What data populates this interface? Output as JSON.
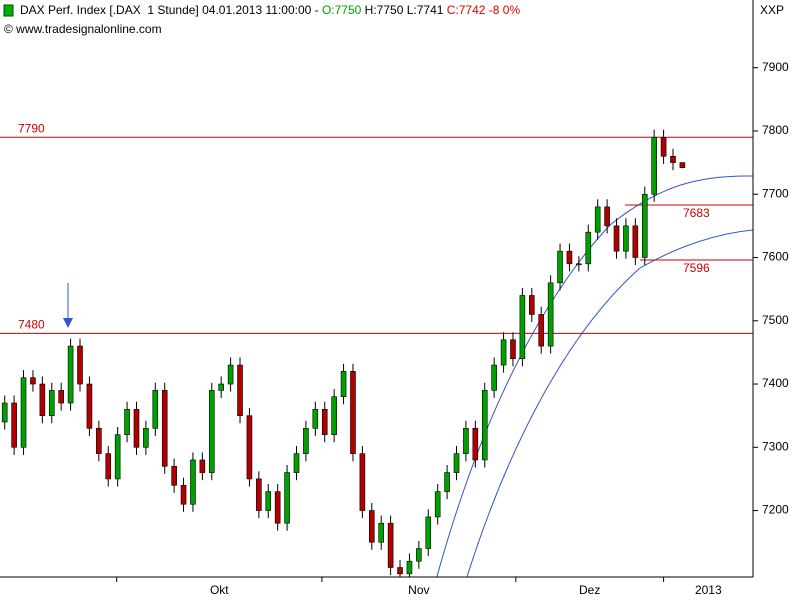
{
  "chart_data": {
    "type": "candlestick",
    "title": "DAX Perf. Index [.DAX  1 Stunde] 04.01.2013 11:00:00 - ",
    "open_label": "O:7750",
    "high_low_label": " H:7750 L:7741 ",
    "change_label": "C:7742 -8 0%",
    "source": "© www.tradesignalonline.com",
    "axis_code": "XXP",
    "up_color": "#00a000",
    "down_color": "#b00000",
    "level_color": "#cc0000",
    "open": [
      7340,
      7370,
      7300,
      7410,
      7400,
      7350,
      7390,
      7370,
      7460,
      7400,
      7330,
      7290,
      7250,
      7320,
      7360,
      7300,
      7330,
      7390,
      7270,
      7240,
      7210,
      7280,
      7260,
      7390,
      7400,
      7430,
      7350,
      7250,
      7200,
      7230,
      7180,
      7260,
      7290,
      7330,
      7360,
      7320,
      7380,
      7420,
      7290,
      7200,
      7150,
      7180,
      7110,
      7100,
      7120,
      7140,
      7190,
      7230,
      7260,
      7290,
      7330,
      7280,
      7390,
      7430,
      7470,
      7440,
      7540,
      7510,
      7460,
      7560,
      7610,
      7590,
      7590,
      7640,
      7680,
      7650,
      7610,
      7650,
      7600,
      7700,
      7790,
      7760,
      7750
    ],
    "high": [
      7382,
      7382,
      7422,
      7422,
      7412,
      7402,
      7402,
      7472,
      7472,
      7412,
      7342,
      7302,
      7332,
      7372,
      7372,
      7342,
      7402,
      7402,
      7282,
      7252,
      7292,
      7292,
      7402,
      7412,
      7442,
      7442,
      7362,
      7262,
      7242,
      7242,
      7272,
      7302,
      7342,
      7372,
      7372,
      7392,
      7432,
      7432,
      7302,
      7212,
      7192,
      7192,
      7122,
      7132,
      7152,
      7202,
      7242,
      7272,
      7302,
      7342,
      7342,
      7402,
      7442,
      7482,
      7482,
      7552,
      7552,
      7522,
      7572,
      7622,
      7622,
      7602,
      7652,
      7692,
      7692,
      7662,
      7662,
      7662,
      7712,
      7802,
      7802,
      7772,
      7750
    ],
    "low": [
      7328,
      7288,
      7288,
      7388,
      7338,
      7338,
      7358,
      7358,
      7388,
      7318,
      7278,
      7238,
      7238,
      7308,
      7288,
      7288,
      7318,
      7258,
      7228,
      7198,
      7198,
      7248,
      7248,
      7378,
      7388,
      7338,
      7238,
      7188,
      7188,
      7168,
      7168,
      7248,
      7278,
      7318,
      7308,
      7308,
      7368,
      7278,
      7188,
      7138,
      7138,
      7098,
      7088,
      7088,
      7108,
      7128,
      7178,
      7218,
      7248,
      7278,
      7268,
      7268,
      7378,
      7418,
      7428,
      7428,
      7498,
      7448,
      7448,
      7548,
      7578,
      7578,
      7578,
      7628,
      7638,
      7598,
      7598,
      7588,
      7588,
      7688,
      7748,
      7738,
      7741
    ],
    "close": [
      7370,
      7300,
      7410,
      7400,
      7350,
      7390,
      7370,
      7460,
      7400,
      7330,
      7290,
      7250,
      7320,
      7360,
      7300,
      7330,
      7390,
      7270,
      7240,
      7210,
      7280,
      7260,
      7390,
      7400,
      7430,
      7350,
      7250,
      7200,
      7230,
      7180,
      7260,
      7290,
      7330,
      7360,
      7320,
      7380,
      7420,
      7290,
      7200,
      7150,
      7180,
      7110,
      7100,
      7120,
      7140,
      7190,
      7230,
      7260,
      7290,
      7330,
      7280,
      7390,
      7430,
      7470,
      7440,
      7540,
      7510,
      7460,
      7560,
      7610,
      7590,
      7590,
      7640,
      7680,
      7650,
      7610,
      7650,
      7600,
      7700,
      7790,
      7760,
      7750,
      7742
    ],
    "levels": [
      {
        "value": 7790,
        "from": 0,
        "label_side": "left"
      },
      {
        "value": 7480,
        "from": 0,
        "label_side": "left"
      },
      {
        "value": 7683,
        "from": 66.4,
        "label_side": "right"
      },
      {
        "value": 7596,
        "from": 68,
        "label_side": "right"
      }
    ],
    "xlim": [
      0,
      80
    ],
    "xticks": [
      {
        "value": 12.4,
        "label": "Okt"
      },
      {
        "value": 34.2,
        "label": "Nov"
      },
      {
        "value": 54.8,
        "label": "Dez"
      },
      {
        "value": 70.5,
        "label": "2013"
      }
    ],
    "ylim": [
      7095,
      8007
    ],
    "yticks": [
      7200,
      7300,
      7400,
      7500,
      7600,
      7700,
      7800,
      7900
    ]
  }
}
